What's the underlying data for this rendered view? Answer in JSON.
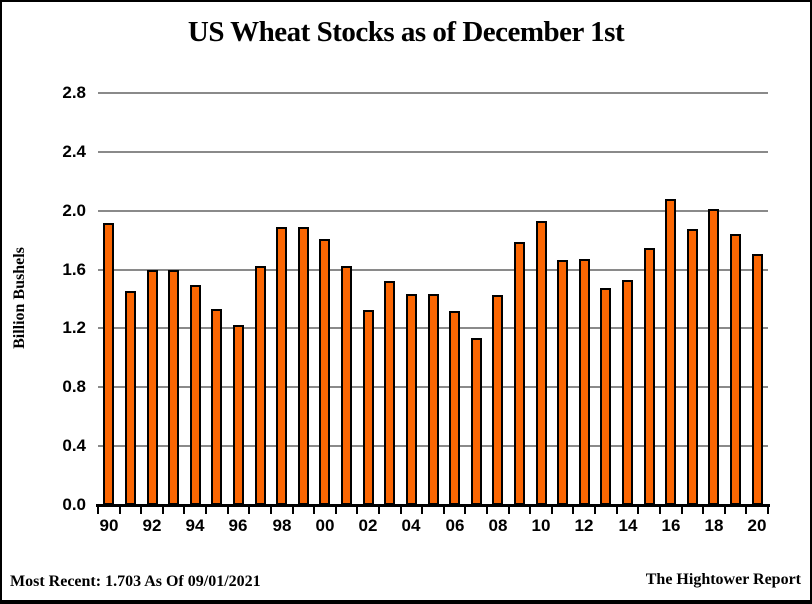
{
  "title": "US Wheat Stocks as of December 1st",
  "footer": {
    "most_recent": "Most Recent: 1.703 As Of 09/01/2021",
    "source": "The Hightower Report"
  },
  "colors": {
    "bar_fill": "#fb6602",
    "bar_border": "#000000",
    "gridline": "#8a8a8a",
    "axis": "#000000",
    "background": "#ffffff",
    "frame_border": "#000000"
  },
  "chart_data": {
    "type": "bar",
    "title": "US Wheat Stocks as of December 1st",
    "xlabel": "",
    "ylabel": "Billion Bushels",
    "ylim": [
      0,
      2.8
    ],
    "ytick_interval": 0.4,
    "ytick_labels": [
      "0.0",
      "0.4",
      "0.8",
      "1.2",
      "1.6",
      "2.0",
      "2.4",
      "2.8"
    ],
    "xtick_labels": [
      "90",
      "92",
      "94",
      "96",
      "98",
      "00",
      "02",
      "04",
      "06",
      "08",
      "10",
      "12",
      "14",
      "16",
      "18",
      "20"
    ],
    "grid": "horizontal-only",
    "legend": "none",
    "categories": [
      "90",
      "91",
      "92",
      "93",
      "94",
      "95",
      "96",
      "97",
      "98",
      "99",
      "00",
      "01",
      "02",
      "03",
      "04",
      "05",
      "06",
      "07",
      "08",
      "09",
      "10",
      "11",
      "12",
      "13",
      "14",
      "15",
      "16",
      "17",
      "18",
      "19",
      "20"
    ],
    "values": [
      1.919,
      1.453,
      1.598,
      1.594,
      1.496,
      1.331,
      1.221,
      1.623,
      1.892,
      1.886,
      1.807,
      1.622,
      1.323,
      1.519,
      1.432,
      1.431,
      1.316,
      1.137,
      1.425,
      1.784,
      1.928,
      1.662,
      1.673,
      1.478,
      1.532,
      1.746,
      2.078,
      1.873,
      2.009,
      1.841,
      1.703
    ],
    "most_recent_value": 1.703
  }
}
